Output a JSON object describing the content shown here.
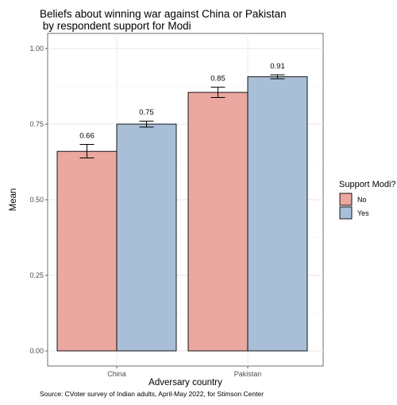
{
  "chart_data": {
    "type": "bar",
    "title": "Beliefs about winning war against China or Pakistan\n by respondent support for Modi",
    "xlabel": "Adversary country",
    "ylabel": "Mean",
    "categories": [
      "China",
      "Pakistan"
    ],
    "ylim": [
      0,
      1.04
    ],
    "yticks": [
      "0.00",
      "0.25",
      "0.50",
      "0.75",
      "1.00"
    ],
    "legend": {
      "title": "Support Modi?",
      "position": "right"
    },
    "grid": true,
    "series": [
      {
        "name": "No",
        "color": "#eba8a0",
        "values": [
          0.66,
          0.855
        ],
        "err_low": [
          0.638,
          0.838
        ],
        "err_high": [
          0.683,
          0.872
        ],
        "labels": [
          "0.66",
          "0.85"
        ]
      },
      {
        "name": "Yes",
        "color": "#a9bfd8",
        "values": [
          0.75,
          0.907
        ],
        "err_low": [
          0.74,
          0.9
        ],
        "err_high": [
          0.76,
          0.913
        ],
        "labels": [
          "0.75",
          "0.91"
        ]
      }
    ],
    "caption": "Source: CVoter survey of Indian adults, April-May 2022, for Stimson Center"
  }
}
